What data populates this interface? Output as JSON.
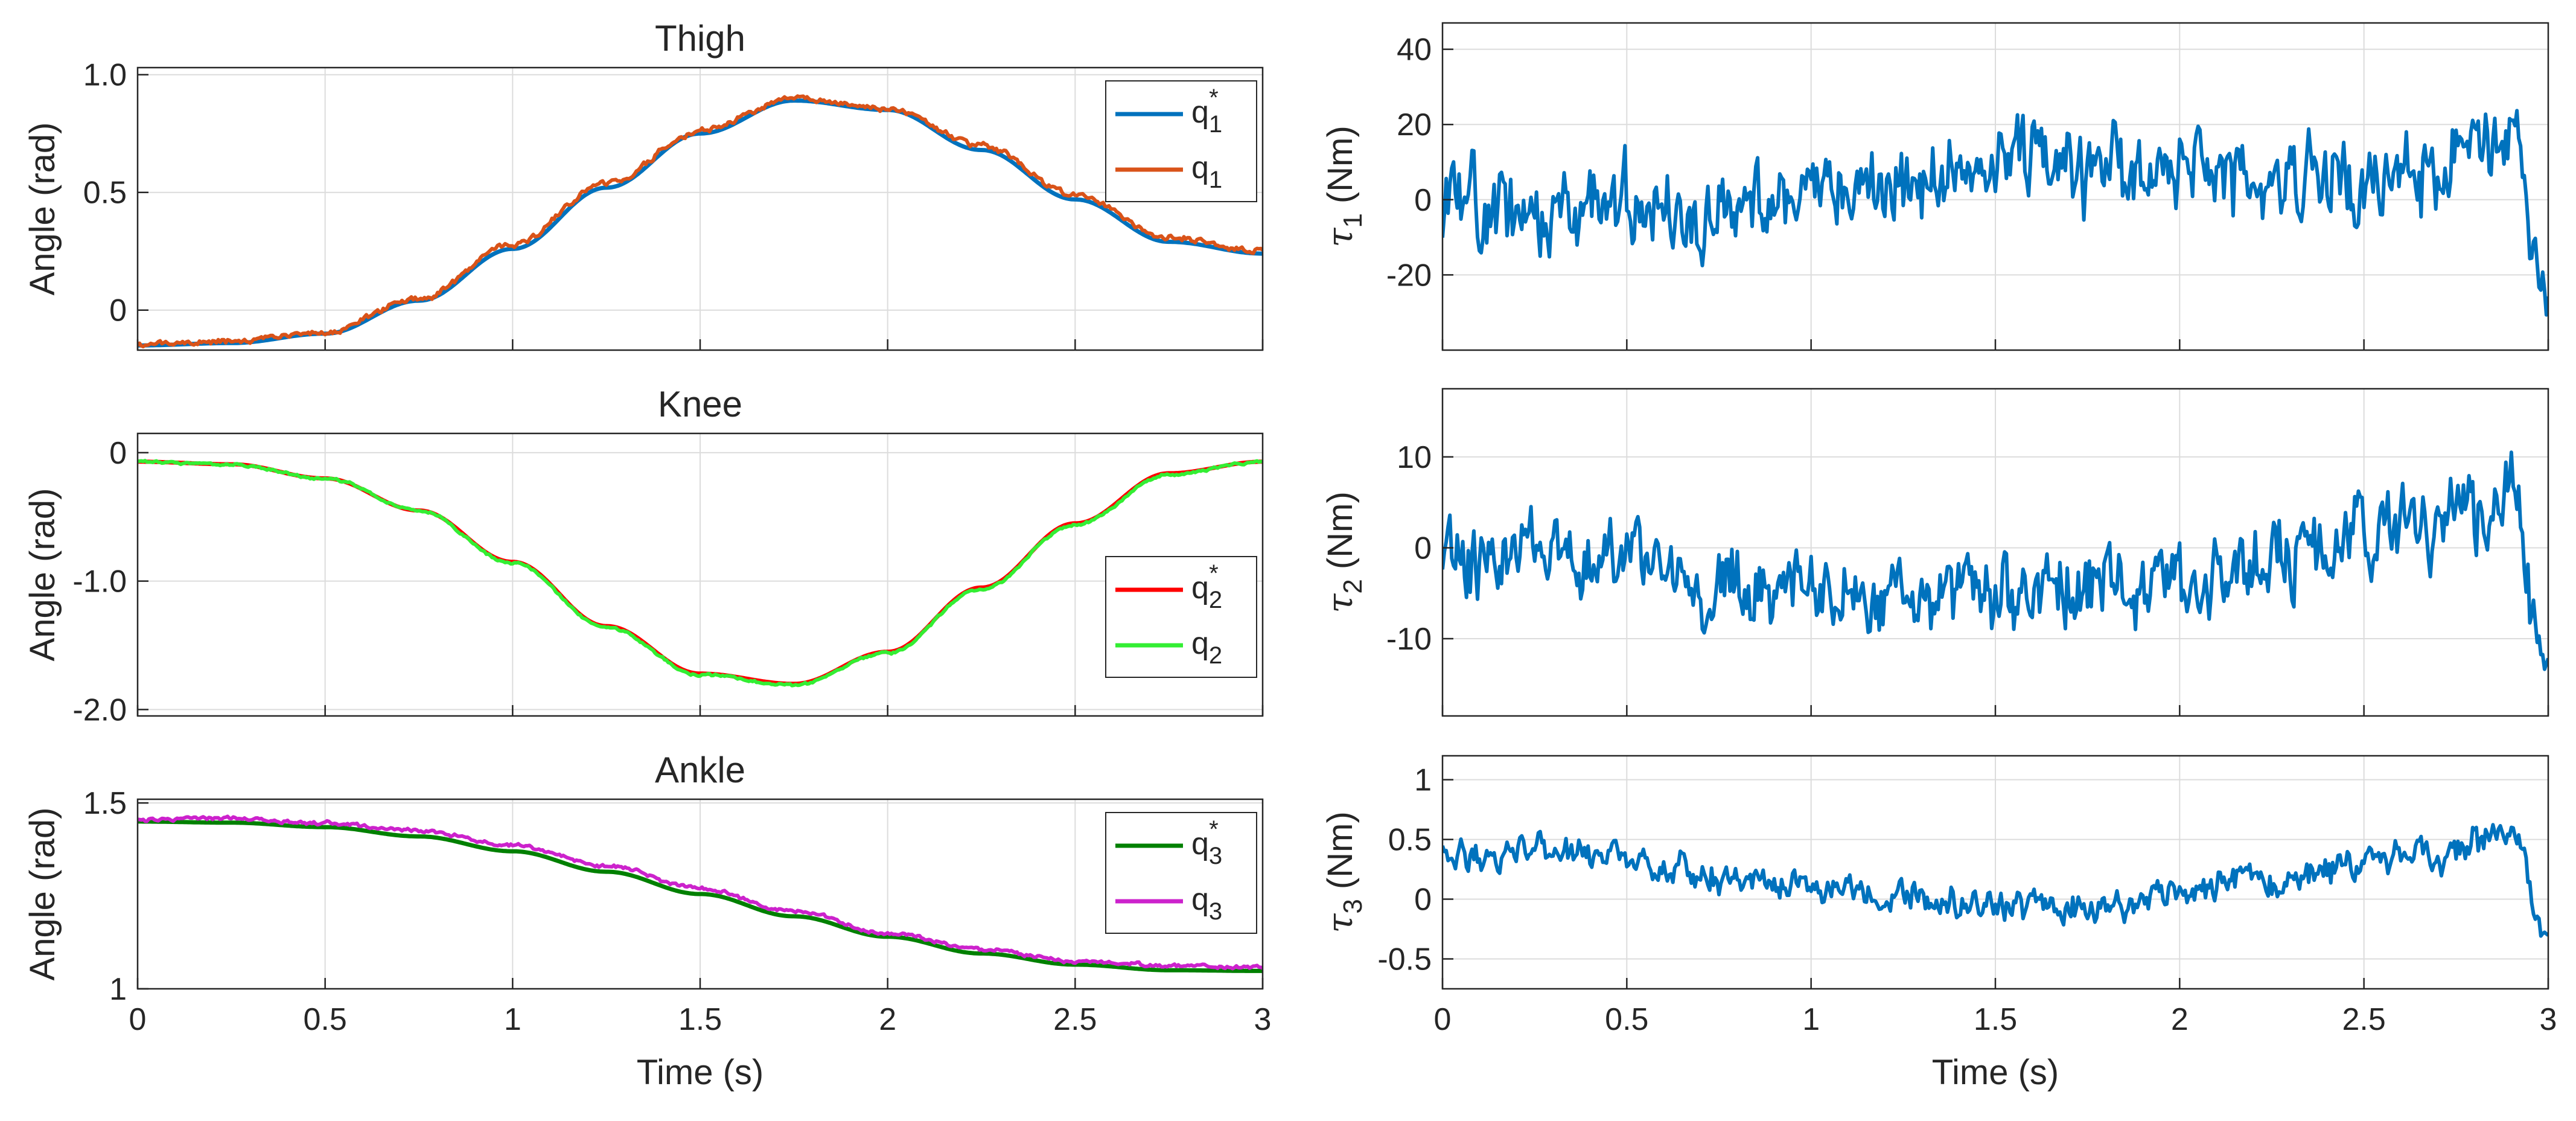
{
  "chart_data": [
    {
      "id": "thigh",
      "type": "line",
      "title": "Thigh",
      "xlabel": "",
      "ylabel": "Angle (rad)",
      "xlim": [
        0,
        3
      ],
      "ylim": [
        -0.17,
        1.03
      ],
      "xticks": [
        0,
        0.5,
        1,
        1.5,
        2,
        2.5,
        3
      ],
      "xticklabels": [],
      "yticks": [
        0,
        0.5,
        1.0
      ],
      "yticklabels": [
        "0",
        "0.5",
        "1.0"
      ],
      "grid": true,
      "legend_position": "top-right",
      "series": [
        {
          "name": "q1*",
          "label_base": "q",
          "sub": "1",
          "star": true,
          "color": "#0072BD",
          "noise": 0,
          "seed": 1,
          "x": [
            0,
            0.25,
            0.5,
            0.75,
            1,
            1.25,
            1.5,
            1.75,
            2,
            2.25,
            2.5,
            2.75,
            3
          ],
          "y": [
            -0.15,
            -0.14,
            -0.1,
            0.04,
            0.26,
            0.52,
            0.75,
            0.89,
            0.85,
            0.68,
            0.47,
            0.29,
            0.24
          ]
        },
        {
          "name": "q1",
          "label_base": "q",
          "sub": "1",
          "star": false,
          "color": "#D95319",
          "noise": 0.01,
          "seed": 2,
          "x": [
            0,
            0.25,
            0.5,
            0.75,
            1,
            1.25,
            1.5,
            1.75,
            2,
            2.25,
            2.5,
            2.75,
            3
          ],
          "y": [
            -0.15,
            -0.13,
            -0.09,
            0.05,
            0.28,
            0.54,
            0.76,
            0.9,
            0.86,
            0.7,
            0.49,
            0.31,
            0.25
          ]
        }
      ]
    },
    {
      "id": "knee",
      "type": "line",
      "title": "Knee",
      "xlabel": "",
      "ylabel": "Angle (rad)",
      "xlim": [
        0,
        3
      ],
      "ylim": [
        -2.05,
        0.15
      ],
      "xticks": [
        0,
        0.5,
        1,
        1.5,
        2,
        2.5,
        3
      ],
      "xticklabels": [],
      "yticks": [
        0,
        -1.0,
        -2.0
      ],
      "yticklabels": [
        "0",
        "-1.0",
        "-2.0"
      ],
      "grid": true,
      "legend_position": "right",
      "series": [
        {
          "name": "q2*",
          "label_base": "q",
          "sub": "2",
          "star": true,
          "color": "#FF0000",
          "noise": 0,
          "seed": 3,
          "x": [
            0,
            0.25,
            0.5,
            0.75,
            1,
            1.25,
            1.5,
            1.75,
            2,
            2.25,
            2.5,
            2.75,
            3
          ],
          "y": [
            -0.07,
            -0.09,
            -0.2,
            -0.45,
            -0.85,
            -1.35,
            -1.72,
            -1.8,
            -1.55,
            -1.05,
            -0.55,
            -0.16,
            -0.07
          ]
        },
        {
          "name": "q2",
          "label_base": "q",
          "sub": "2",
          "star": false,
          "color": "#33EE33",
          "noise": 0.008,
          "seed": 4,
          "x": [
            0,
            0.25,
            0.5,
            0.75,
            1,
            1.25,
            1.5,
            1.75,
            2,
            2.25,
            2.5,
            2.75,
            3
          ],
          "y": [
            -0.07,
            -0.09,
            -0.2,
            -0.45,
            -0.86,
            -1.36,
            -1.73,
            -1.81,
            -1.56,
            -1.06,
            -0.56,
            -0.17,
            -0.07
          ]
        }
      ]
    },
    {
      "id": "ankle",
      "type": "line",
      "title": "Ankle",
      "xlabel": "Time (s)",
      "ylabel": "Angle (rad)",
      "xlim": [
        0,
        3
      ],
      "ylim": [
        1.0,
        1.51
      ],
      "xticks": [
        0,
        0.5,
        1,
        1.5,
        2,
        2.5,
        3
      ],
      "xticklabels": [
        "0",
        "0.5",
        "1",
        "1.5",
        "2",
        "2.5",
        "3"
      ],
      "yticks": [
        1,
        1.5
      ],
      "yticklabels": [
        "1",
        "1.5"
      ],
      "grid": true,
      "legend_position": "top-right",
      "series": [
        {
          "name": "q3*",
          "label_base": "q",
          "sub": "3",
          "star": true,
          "color": "#008000",
          "noise": 0,
          "seed": 5,
          "x": [
            0,
            0.25,
            0.5,
            0.75,
            1,
            1.25,
            1.5,
            1.75,
            2,
            2.25,
            2.5,
            2.75,
            3
          ],
          "y": [
            1.45,
            1.447,
            1.435,
            1.41,
            1.37,
            1.315,
            1.255,
            1.195,
            1.14,
            1.095,
            1.065,
            1.05,
            1.048
          ]
        },
        {
          "name": "q3",
          "label_base": "q",
          "sub": "3",
          "star": false,
          "color": "#CC22CC",
          "noise": 0.004,
          "seed": 6,
          "x": [
            0,
            0.25,
            0.5,
            0.75,
            1,
            1.25,
            1.5,
            1.75,
            2,
            2.25,
            2.5,
            2.75,
            3
          ],
          "y": [
            1.455,
            1.46,
            1.445,
            1.425,
            1.385,
            1.33,
            1.27,
            1.21,
            1.15,
            1.105,
            1.075,
            1.062,
            1.058
          ]
        }
      ]
    },
    {
      "id": "tau1",
      "type": "line",
      "title": "",
      "xlabel": "",
      "ylabel": "τ1 (Nm)",
      "ylabel_parts": [
        "τ",
        "1",
        " (Nm)"
      ],
      "xlim": [
        0,
        3
      ],
      "ylim": [
        -40,
        47
      ],
      "xticks": [
        0,
        0.5,
        1,
        1.5,
        2,
        2.5,
        3
      ],
      "xticklabels": [],
      "yticks": [
        -20,
        0,
        20,
        40
      ],
      "yticklabels": [
        "-20",
        "0",
        "20",
        "40"
      ],
      "grid": true,
      "legend_position": "none",
      "series": [
        {
          "name": "tau1",
          "color": "#0072BD",
          "noise": 9,
          "seed": 11,
          "x": [
            0,
            0.25,
            0.5,
            0.75,
            1,
            1.25,
            1.5,
            1.75,
            2,
            2.25,
            2.5,
            2.75,
            2.9,
            3
          ],
          "y": [
            -3,
            -6,
            0,
            -3,
            2,
            3,
            10,
            7,
            8,
            6,
            4,
            10,
            18,
            -28
          ]
        }
      ]
    },
    {
      "id": "tau2",
      "type": "line",
      "title": "",
      "xlabel": "",
      "ylabel": "τ2 (Nm)",
      "ylabel_parts": [
        "τ",
        "2",
        " (Nm)"
      ],
      "xlim": [
        0,
        3
      ],
      "ylim": [
        -18.5,
        17.5
      ],
      "xticks": [
        0,
        0.5,
        1,
        1.5,
        2,
        2.5,
        3
      ],
      "xticklabels": [],
      "yticks": [
        -10,
        0,
        10
      ],
      "yticklabels": [
        "-10",
        "0",
        "10"
      ],
      "grid": true,
      "legend_position": "none",
      "series": [
        {
          "name": "tau2",
          "color": "#0072BD",
          "noise": 3.5,
          "seed": 22,
          "x": [
            0,
            0.25,
            0.5,
            0.75,
            1,
            1.25,
            1.5,
            1.75,
            2,
            2.25,
            2.5,
            2.75,
            2.9,
            3
          ],
          "y": [
            -1,
            -2,
            -1,
            -4,
            -5,
            -6,
            -5,
            -4,
            -3,
            -1,
            2,
            3,
            7,
            -14
          ]
        }
      ]
    },
    {
      "id": "tau3",
      "type": "line",
      "title": "",
      "xlabel": "Time (s)",
      "ylabel": "τ3 (Nm)",
      "ylabel_parts": [
        "τ",
        "3",
        " (Nm)"
      ],
      "xlim": [
        0,
        3
      ],
      "ylim": [
        -0.75,
        1.2
      ],
      "xticks": [
        0,
        0.5,
        1,
        1.5,
        2,
        2.5,
        3
      ],
      "xticklabels": [
        "0",
        "0.5",
        "1",
        "1.5",
        "2",
        "2.5",
        "3"
      ],
      "yticks": [
        -0.5,
        0,
        0.5,
        1
      ],
      "yticklabels": [
        "-0.5",
        "0",
        "0.5",
        "1"
      ],
      "grid": true,
      "legend_position": "none",
      "series": [
        {
          "name": "tau3",
          "color": "#0072BD",
          "noise": 0.11,
          "seed": 33,
          "x": [
            0,
            0.25,
            0.5,
            0.75,
            1,
            1.25,
            1.5,
            1.75,
            2,
            2.25,
            2.5,
            2.75,
            2.9,
            3
          ],
          "y": [
            0.35,
            0.42,
            0.3,
            0.22,
            0.1,
            0.0,
            -0.05,
            -0.08,
            0.05,
            0.15,
            0.3,
            0.4,
            0.6,
            -0.35
          ]
        }
      ]
    }
  ]
}
